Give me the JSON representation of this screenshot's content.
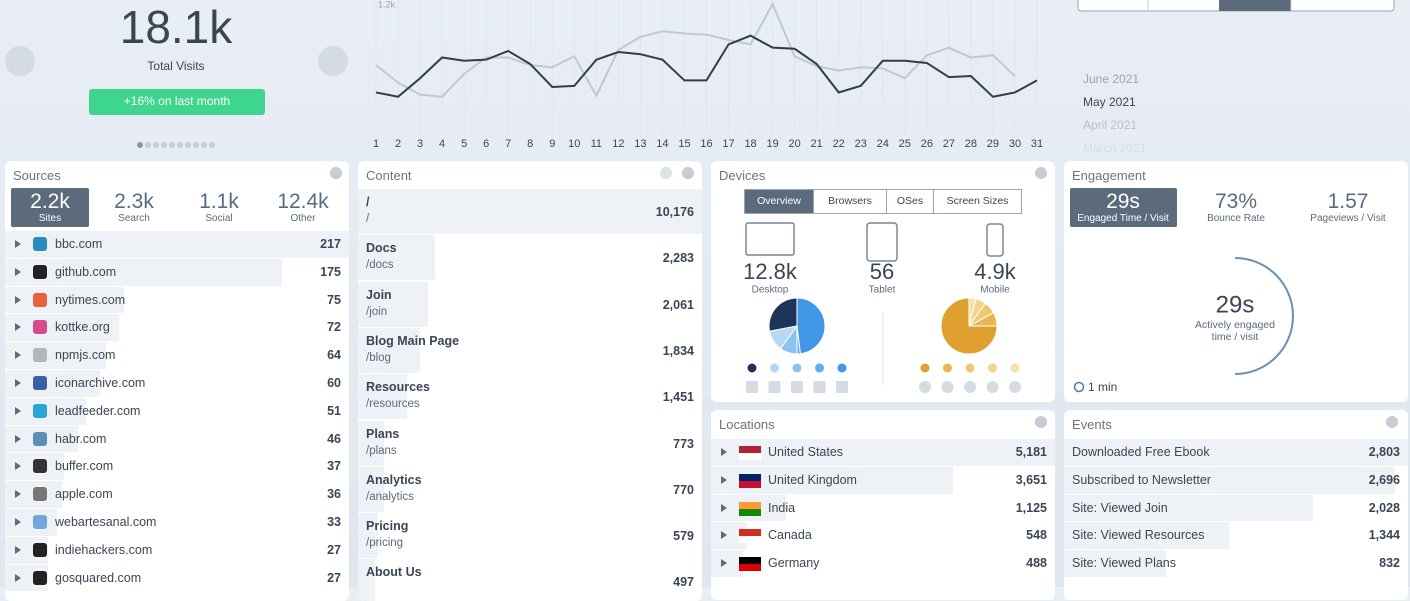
{
  "summary": {
    "total": "18.1k",
    "label": "Total Visits",
    "change": "+16% on last month"
  },
  "chart_data": {
    "type": "line",
    "x": [
      1,
      2,
      3,
      4,
      5,
      6,
      7,
      8,
      9,
      10,
      11,
      12,
      13,
      14,
      15,
      16,
      17,
      18,
      19,
      20,
      21,
      22,
      23,
      24,
      25,
      26,
      27,
      28,
      29,
      30,
      31
    ],
    "xlim": [
      1,
      31
    ],
    "ylim": [
      0,
      1200
    ],
    "yticks": [
      {
        "value": 1200,
        "label": "1.2k"
      }
    ],
    "series": [
      {
        "color": "#c3c8ce",
        "values": [
          640,
          480,
          370,
          350,
          560,
          710,
          710,
          640,
          620,
          720,
          360,
          780,
          900,
          950,
          930,
          920,
          870,
          830,
          1200,
          720,
          630,
          590,
          620,
          610,
          520,
          730,
          800,
          710,
          730,
          540,
          null
        ]
      },
      {
        "color": "#2c3e50",
        "values": [
          390,
          350,
          520,
          710,
          680,
          690,
          770,
          650,
          440,
          450,
          690,
          760,
          740,
          690,
          500,
          500,
          830,
          910,
          800,
          790,
          650,
          390,
          450,
          680,
          680,
          660,
          530,
          540,
          350,
          390,
          500
        ]
      }
    ]
  },
  "months": [
    "June 2021",
    "May 2021",
    "April 2021",
    "March 2021"
  ],
  "sources": {
    "title": "Sources",
    "tabs": [
      {
        "value": "2.2k",
        "label": "Sites"
      },
      {
        "value": "2.3k",
        "label": "Search"
      },
      {
        "value": "1.1k",
        "label": "Social"
      },
      {
        "value": "12.4k",
        "label": "Other"
      }
    ],
    "rows": [
      {
        "name": "bbc.com",
        "count": "217"
      },
      {
        "name": "github.com",
        "count": "175"
      },
      {
        "name": "nytimes.com",
        "count": "75"
      },
      {
        "name": "kottke.org",
        "count": "72"
      },
      {
        "name": "npmjs.com",
        "count": "64"
      },
      {
        "name": "iconarchive.com",
        "count": "60"
      },
      {
        "name": "leadfeeder.com",
        "count": "51"
      },
      {
        "name": "habr.com",
        "count": "46"
      },
      {
        "name": "buffer.com",
        "count": "37"
      },
      {
        "name": "apple.com",
        "count": "36"
      },
      {
        "name": "webartesanal.com",
        "count": "33"
      },
      {
        "name": "indiehackers.com",
        "count": "27"
      },
      {
        "name": "gosquared.com",
        "count": "27"
      }
    ]
  },
  "content": {
    "title": "Content",
    "rows": [
      {
        "title": "/",
        "path": "/",
        "count": "10,176"
      },
      {
        "title": "Docs",
        "path": "/docs",
        "count": "2,283"
      },
      {
        "title": "Join",
        "path": "/join",
        "count": "2,061"
      },
      {
        "title": "Blog Main Page",
        "path": "/blog",
        "count": "1,834"
      },
      {
        "title": "Resources",
        "path": "/resources",
        "count": "1,451"
      },
      {
        "title": "Plans",
        "path": "/plans",
        "count": "773"
      },
      {
        "title": "Analytics",
        "path": "/analytics",
        "count": "770"
      },
      {
        "title": "Pricing",
        "path": "/pricing",
        "count": "579"
      },
      {
        "title": "About Us",
        "path": "",
        "count": "497"
      }
    ]
  },
  "devices": {
    "title": "Devices",
    "tabs": [
      "Overview",
      "Browsers",
      "OSes",
      "Screen Sizes"
    ],
    "types": [
      {
        "value": "12.8k",
        "label": "Desktop"
      },
      {
        "value": "56",
        "label": "Tablet"
      },
      {
        "value": "4.9k",
        "label": "Mobile"
      }
    ],
    "pies": [
      {
        "slices": [
          {
            "value": 28,
            "color": "#1d3557"
          },
          {
            "value": 12,
            "color": "#b3d9f7"
          },
          {
            "value": 10,
            "color": "#8cc4ef"
          },
          {
            "value": 2,
            "color": "#62aeea"
          },
          {
            "value": 48,
            "color": "#3f97e6"
          }
        ]
      },
      {
        "slices": [
          {
            "value": 75,
            "color": "#e0a030"
          },
          {
            "value": 8,
            "color": "#eab550"
          },
          {
            "value": 7,
            "color": "#f0c76e"
          },
          {
            "value": 6,
            "color": "#f3d48a"
          },
          {
            "value": 4,
            "color": "#f7e2ad"
          }
        ]
      }
    ]
  },
  "engagement": {
    "title": "Engagement",
    "tabs": [
      {
        "value": "29s",
        "label": "Engaged Time / Visit"
      },
      {
        "value": "73%",
        "label": "Bounce Rate"
      },
      {
        "value": "1.57",
        "label": "Pageviews / Visit"
      }
    ],
    "gauge_value": "29s",
    "gauge_label": [
      "Actively engaged",
      "time / visit"
    ],
    "legend": "1 min"
  },
  "locations": {
    "title": "Locations",
    "rows": [
      {
        "name": "United States",
        "count": "5,181"
      },
      {
        "name": "United Kingdom",
        "count": "3,651"
      },
      {
        "name": "India",
        "count": "1,125"
      },
      {
        "name": "Canada",
        "count": "548"
      },
      {
        "name": "Germany",
        "count": "488"
      }
    ]
  },
  "events": {
    "title": "Events",
    "rows": [
      {
        "name": "Downloaded Free Ebook",
        "count": "2,803"
      },
      {
        "name": "Subscribed to Newsletter",
        "count": "2,696"
      },
      {
        "name": "Site: Viewed Join",
        "count": "2,028"
      },
      {
        "name": "Site: Viewed Resources",
        "count": "1,344"
      },
      {
        "name": "Site: Viewed Plans",
        "count": "832"
      }
    ]
  }
}
